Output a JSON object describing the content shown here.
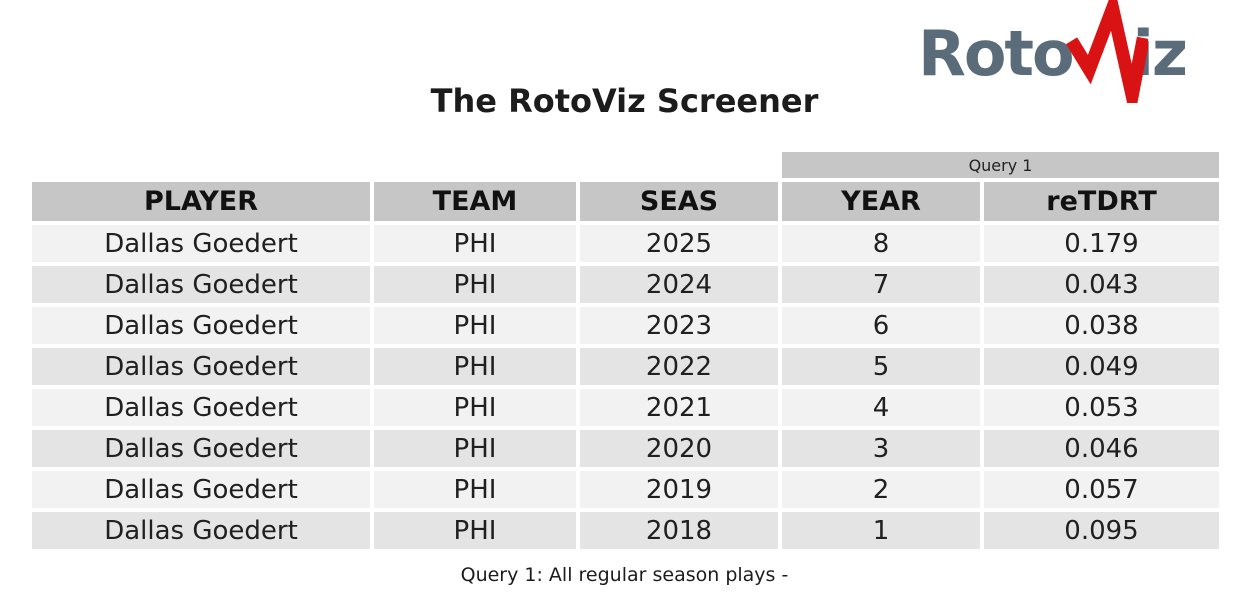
{
  "colors": {
    "logo_gray": "#5a6b7a",
    "logo_red": "#d91313",
    "header_bg": "#c6c6c6",
    "row_light": "#f2f2f2",
    "row_dark": "#e4e4e4",
    "text_dark": "#1c1c1c"
  },
  "logo": {
    "text_left": "Roto",
    "text_right": "iz",
    "pulse_icon": "pulse-v-icon"
  },
  "chart_data": {
    "type": "table",
    "title": "The RotoViz Screener",
    "query_band": {
      "label": "Query 1",
      "spans_columns": [
        "YEAR",
        "reTDRT"
      ]
    },
    "columns": [
      "PLAYER",
      "TEAM",
      "SEAS",
      "YEAR",
      "reTDRT"
    ],
    "rows": [
      [
        "Dallas Goedert",
        "PHI",
        "2025",
        "8",
        "0.179"
      ],
      [
        "Dallas Goedert",
        "PHI",
        "2024",
        "7",
        "0.043"
      ],
      [
        "Dallas Goedert",
        "PHI",
        "2023",
        "6",
        "0.038"
      ],
      [
        "Dallas Goedert",
        "PHI",
        "2022",
        "5",
        "0.049"
      ],
      [
        "Dallas Goedert",
        "PHI",
        "2021",
        "4",
        "0.053"
      ],
      [
        "Dallas Goedert",
        "PHI",
        "2020",
        "3",
        "0.046"
      ],
      [
        "Dallas Goedert",
        "PHI",
        "2019",
        "2",
        "0.057"
      ],
      [
        "Dallas Goedert",
        "PHI",
        "2018",
        "1",
        "0.095"
      ]
    ],
    "footer_caption": "Query 1: All regular season plays -"
  }
}
